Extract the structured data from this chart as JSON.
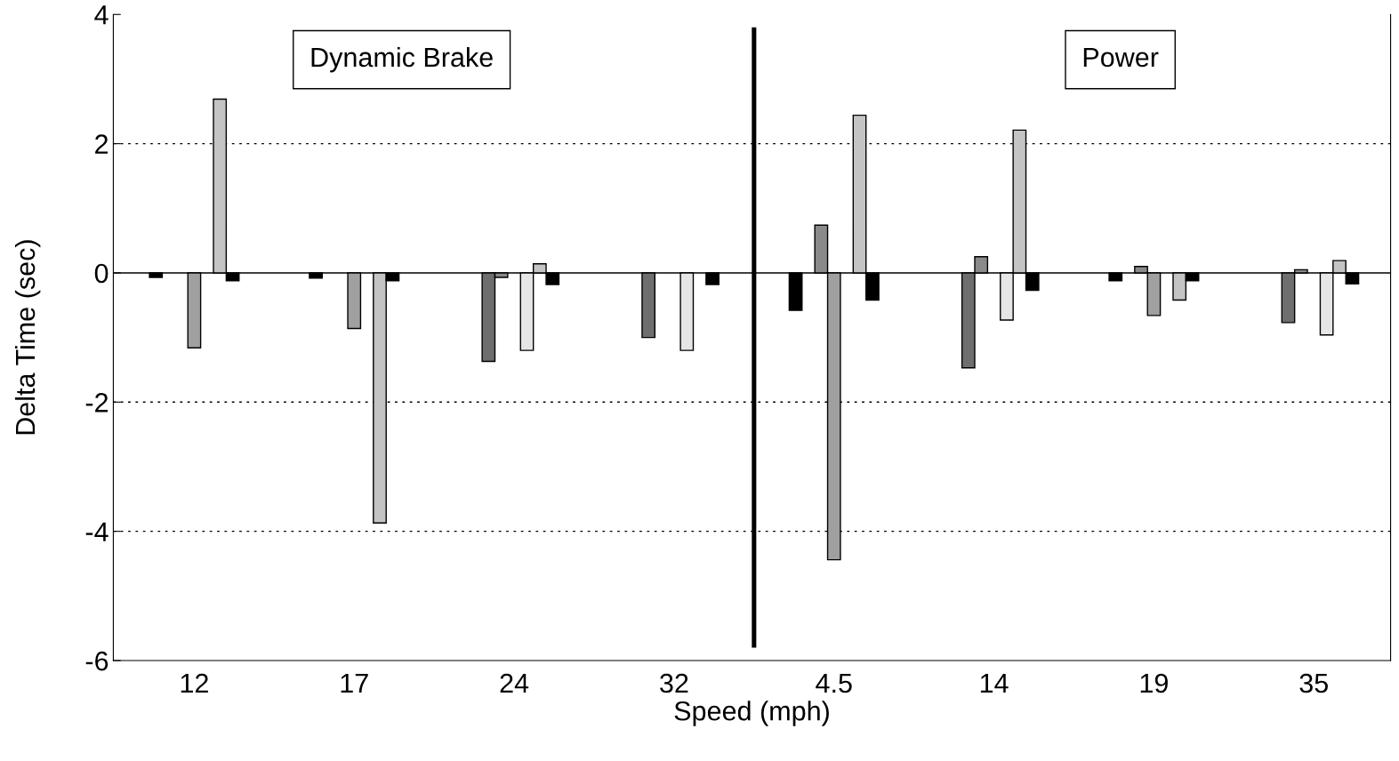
{
  "chart_data": {
    "type": "bar",
    "xlabel": "Speed (mph)",
    "ylabel": "Delta Time (sec)",
    "categories": [
      "12",
      "17",
      "24",
      "32",
      "4.5",
      "14",
      "19",
      "35"
    ],
    "series": [
      {
        "color": "#000000",
        "values": [
          -0.07,
          -0.08,
          null,
          null,
          -0.58,
          null,
          -0.12,
          null
        ]
      },
      {
        "color": "#6e6e6e",
        "values": [
          null,
          null,
          -1.37,
          -1.0,
          null,
          -1.47,
          null,
          -0.77
        ]
      },
      {
        "color": "#8a8a8a",
        "values": [
          null,
          null,
          -0.07,
          null,
          0.74,
          0.25,
          0.1,
          0.05
        ]
      },
      {
        "color": "#a0a0a0",
        "values": [
          -1.16,
          -0.86,
          null,
          null,
          -4.44,
          null,
          -0.66,
          null
        ]
      },
      {
        "color": "#e6e6e6",
        "values": [
          null,
          null,
          -1.2,
          -1.2,
          null,
          -0.73,
          null,
          -0.96
        ]
      },
      {
        "color": "#c4c4c4",
        "values": [
          2.69,
          -3.87,
          0.14,
          null,
          2.44,
          2.21,
          -0.42,
          0.19
        ]
      },
      {
        "color": "#000000",
        "values": [
          -0.12,
          -0.12,
          -0.18,
          -0.18,
          -0.42,
          -0.27,
          -0.12,
          -0.17
        ]
      }
    ],
    "ylim": [
      -6,
      4
    ],
    "yticks": [
      -6,
      -4,
      -2,
      0,
      2,
      4
    ],
    "grid": "y",
    "annotations": [
      "Dynamic Brake",
      "Power"
    ]
  }
}
